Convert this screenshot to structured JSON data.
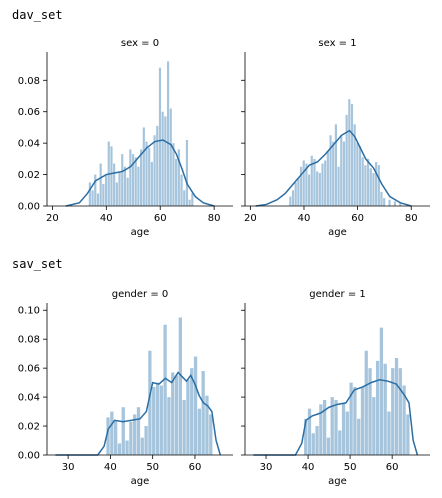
{
  "cells": [
    {
      "label": "dav_set"
    },
    {
      "label": "sav_set"
    }
  ],
  "colors": {
    "bar": "#a6c5dd",
    "kde": "#2b6ea4",
    "axis": "#000000"
  },
  "chart_data": [
    {
      "type": "bar",
      "title": "sex = 0",
      "xlabel": "age",
      "ylabel": "",
      "xlim": [
        18,
        87
      ],
      "ylim": [
        0,
        0.098
      ],
      "xticks": [
        20,
        40,
        60,
        80
      ],
      "yticks": [
        "0.00",
        "0.02",
        "0.04",
        "0.06",
        "0.08"
      ],
      "ytick_values": [
        0,
        0.02,
        0.04,
        0.06,
        0.08
      ],
      "bin_width": 1,
      "bars": [
        [
          34,
          0.015
        ],
        [
          35,
          0.01
        ],
        [
          36,
          0.02
        ],
        [
          37,
          0.008
        ],
        [
          38,
          0.027
        ],
        [
          39,
          0.014
        ],
        [
          40,
          0.02
        ],
        [
          41,
          0.041
        ],
        [
          42,
          0.038
        ],
        [
          43,
          0.027
        ],
        [
          44,
          0.015
        ],
        [
          45,
          0.022
        ],
        [
          46,
          0.033
        ],
        [
          47,
          0.025
        ],
        [
          48,
          0.018
        ],
        [
          49,
          0.036
        ],
        [
          50,
          0.033
        ],
        [
          51,
          0.031
        ],
        [
          52,
          0.025
        ],
        [
          53,
          0.036
        ],
        [
          54,
          0.05
        ],
        [
          55,
          0.041
        ],
        [
          56,
          0.037
        ],
        [
          57,
          0.028
        ],
        [
          58,
          0.045
        ],
        [
          59,
          0.051
        ],
        [
          60,
          0.088
        ],
        [
          61,
          0.06
        ],
        [
          62,
          0.057
        ],
        [
          63,
          0.092
        ],
        [
          64,
          0.062
        ],
        [
          65,
          0.04
        ],
        [
          66,
          0.03
        ],
        [
          67,
          0.036
        ],
        [
          68,
          0.02
        ],
        [
          69,
          0.01
        ],
        [
          70,
          0.042
        ],
        [
          71,
          0.004
        ],
        [
          72,
          0.008
        ]
      ],
      "kde": [
        [
          25,
          0
        ],
        [
          30,
          0.002
        ],
        [
          33,
          0.008
        ],
        [
          36,
          0.016
        ],
        [
          40,
          0.02
        ],
        [
          43,
          0.021
        ],
        [
          46,
          0.022
        ],
        [
          49,
          0.025
        ],
        [
          52,
          0.031
        ],
        [
          55,
          0.037
        ],
        [
          58,
          0.041
        ],
        [
          61,
          0.042
        ],
        [
          64,
          0.039
        ],
        [
          66,
          0.033
        ],
        [
          68,
          0.024
        ],
        [
          70,
          0.014
        ],
        [
          73,
          0.006
        ],
        [
          76,
          0.002
        ],
        [
          80,
          0.0
        ]
      ]
    },
    {
      "type": "bar",
      "title": "sex = 1",
      "xlabel": "age",
      "ylabel": "",
      "xlim": [
        18,
        87
      ],
      "ylim": [
        0,
        0.098
      ],
      "xticks": [
        20,
        40,
        60,
        80
      ],
      "yticks": [],
      "ytick_values": [
        0,
        0.02,
        0.04,
        0.06,
        0.08
      ],
      "bin_width": 1,
      "bars": [
        [
          35,
          0.006
        ],
        [
          36,
          0.01
        ],
        [
          37,
          0.015
        ],
        [
          38,
          0.018
        ],
        [
          39,
          0.025
        ],
        [
          40,
          0.029
        ],
        [
          41,
          0.027
        ],
        [
          42,
          0.02
        ],
        [
          43,
          0.032
        ],
        [
          44,
          0.03
        ],
        [
          45,
          0.022
        ],
        [
          46,
          0.021
        ],
        [
          47,
          0.027
        ],
        [
          48,
          0.029
        ],
        [
          49,
          0.035
        ],
        [
          50,
          0.045
        ],
        [
          51,
          0.041
        ],
        [
          52,
          0.052
        ],
        [
          53,
          0.025
        ],
        [
          54,
          0.045
        ],
        [
          55,
          0.041
        ],
        [
          56,
          0.058
        ],
        [
          57,
          0.068
        ],
        [
          58,
          0.065
        ],
        [
          59,
          0.052
        ],
        [
          60,
          0.04
        ],
        [
          61,
          0.038
        ],
        [
          62,
          0.031
        ],
        [
          63,
          0.026
        ],
        [
          64,
          0.03
        ],
        [
          65,
          0.024
        ],
        [
          66,
          0.021
        ],
        [
          67,
          0.028
        ],
        [
          68,
          0.026
        ],
        [
          69,
          0.009
        ],
        [
          70,
          0.005
        ],
        [
          72,
          0.004
        ],
        [
          74,
          0.003
        ],
        [
          76,
          0.002
        ]
      ],
      "kde": [
        [
          22,
          0
        ],
        [
          26,
          0.001
        ],
        [
          30,
          0.004
        ],
        [
          33,
          0.008
        ],
        [
          36,
          0.014
        ],
        [
          39,
          0.02
        ],
        [
          42,
          0.026
        ],
        [
          45,
          0.028
        ],
        [
          48,
          0.033
        ],
        [
          51,
          0.039
        ],
        [
          54,
          0.045
        ],
        [
          57,
          0.048
        ],
        [
          59,
          0.044
        ],
        [
          61,
          0.037
        ],
        [
          63,
          0.03
        ],
        [
          66,
          0.024
        ],
        [
          69,
          0.014
        ],
        [
          72,
          0.006
        ],
        [
          76,
          0.002
        ],
        [
          80,
          0.0
        ]
      ]
    },
    {
      "type": "bar",
      "title": "gender = 0",
      "xlabel": "age",
      "ylabel": "",
      "xlim": [
        25,
        69
      ],
      "ylim": [
        0,
        0.105
      ],
      "xticks": [
        30,
        40,
        50,
        60
      ],
      "yticks": [
        "0.00",
        "0.02",
        "0.04",
        "0.06",
        "0.08",
        "0.10"
      ],
      "ytick_values": [
        0,
        0.02,
        0.04,
        0.06,
        0.08,
        0.1
      ],
      "bin_width": 0.9,
      "bars": [
        [
          39.5,
          0.026
        ],
        [
          40.4,
          0.03
        ],
        [
          41.3,
          0.024
        ],
        [
          42.2,
          0.008
        ],
        [
          43.1,
          0.033
        ],
        [
          44.0,
          0.01
        ],
        [
          44.9,
          0.023
        ],
        [
          45.8,
          0.028
        ],
        [
          46.7,
          0.033
        ],
        [
          47.6,
          0.012
        ],
        [
          48.5,
          0.02
        ],
        [
          49.4,
          0.072
        ],
        [
          50.3,
          0.047
        ],
        [
          51.2,
          0.05
        ],
        [
          52.1,
          0.048
        ],
        [
          53.0,
          0.09
        ],
        [
          53.9,
          0.04
        ],
        [
          54.8,
          0.057
        ],
        [
          55.7,
          0.055
        ],
        [
          56.6,
          0.095
        ],
        [
          57.5,
          0.038
        ],
        [
          58.4,
          0.052
        ],
        [
          59.3,
          0.06
        ],
        [
          60.2,
          0.068
        ],
        [
          61.1,
          0.032
        ],
        [
          62.0,
          0.058
        ],
        [
          62.9,
          0.041
        ],
        [
          63.8,
          0.028
        ]
      ],
      "kde": [
        [
          27,
          0
        ],
        [
          37,
          0.0
        ],
        [
          38.5,
          0.006
        ],
        [
          39.5,
          0.018
        ],
        [
          41,
          0.024
        ],
        [
          43,
          0.023
        ],
        [
          45,
          0.024
        ],
        [
          47,
          0.025
        ],
        [
          48.5,
          0.03
        ],
        [
          50,
          0.05
        ],
        [
          51.5,
          0.049
        ],
        [
          53,
          0.053
        ],
        [
          54.5,
          0.05
        ],
        [
          56,
          0.057
        ],
        [
          57,
          0.054
        ],
        [
          58,
          0.051
        ],
        [
          59,
          0.055
        ],
        [
          60,
          0.049
        ],
        [
          61,
          0.041
        ],
        [
          62,
          0.036
        ],
        [
          63,
          0.034
        ],
        [
          64,
          0.03
        ],
        [
          65,
          0.01
        ],
        [
          66,
          0.0
        ]
      ]
    },
    {
      "type": "bar",
      "title": "gender = 1",
      "xlabel": "age",
      "ylabel": "",
      "xlim": [
        25,
        69
      ],
      "ylim": [
        0,
        0.105
      ],
      "xticks": [
        30,
        40,
        50,
        60
      ],
      "yticks": [],
      "ytick_values": [
        0,
        0.02,
        0.04,
        0.06,
        0.08,
        0.1
      ],
      "bin_width": 0.9,
      "bars": [
        [
          39.5,
          0.025
        ],
        [
          40.4,
          0.032
        ],
        [
          41.3,
          0.015
        ],
        [
          42.2,
          0.02
        ],
        [
          43.1,
          0.035
        ],
        [
          44.0,
          0.038
        ],
        [
          44.9,
          0.012
        ],
        [
          45.8,
          0.04
        ],
        [
          46.7,
          0.038
        ],
        [
          47.6,
          0.017
        ],
        [
          48.5,
          0.036
        ],
        [
          49.4,
          0.03
        ],
        [
          50.3,
          0.05
        ],
        [
          51.2,
          0.047
        ],
        [
          52.1,
          0.025
        ],
        [
          53.0,
          0.047
        ],
        [
          53.9,
          0.072
        ],
        [
          54.8,
          0.06
        ],
        [
          55.7,
          0.04
        ],
        [
          56.6,
          0.065
        ],
        [
          57.5,
          0.088
        ],
        [
          58.4,
          0.063
        ],
        [
          59.3,
          0.03
        ],
        [
          60.2,
          0.06
        ],
        [
          61.1,
          0.067
        ],
        [
          62.0,
          0.06
        ],
        [
          62.9,
          0.048
        ],
        [
          63.8,
          0.028
        ]
      ],
      "kde": [
        [
          27,
          0
        ],
        [
          37,
          0.0
        ],
        [
          38.5,
          0.008
        ],
        [
          39.5,
          0.024
        ],
        [
          41,
          0.027
        ],
        [
          43,
          0.029
        ],
        [
          45,
          0.033
        ],
        [
          47,
          0.035
        ],
        [
          49,
          0.036
        ],
        [
          51,
          0.045
        ],
        [
          53,
          0.047
        ],
        [
          55,
          0.05
        ],
        [
          57,
          0.052
        ],
        [
          59,
          0.051
        ],
        [
          61,
          0.049
        ],
        [
          62,
          0.045
        ],
        [
          63,
          0.041
        ],
        [
          64,
          0.036
        ],
        [
          65,
          0.01
        ],
        [
          66,
          0.0
        ]
      ]
    }
  ]
}
